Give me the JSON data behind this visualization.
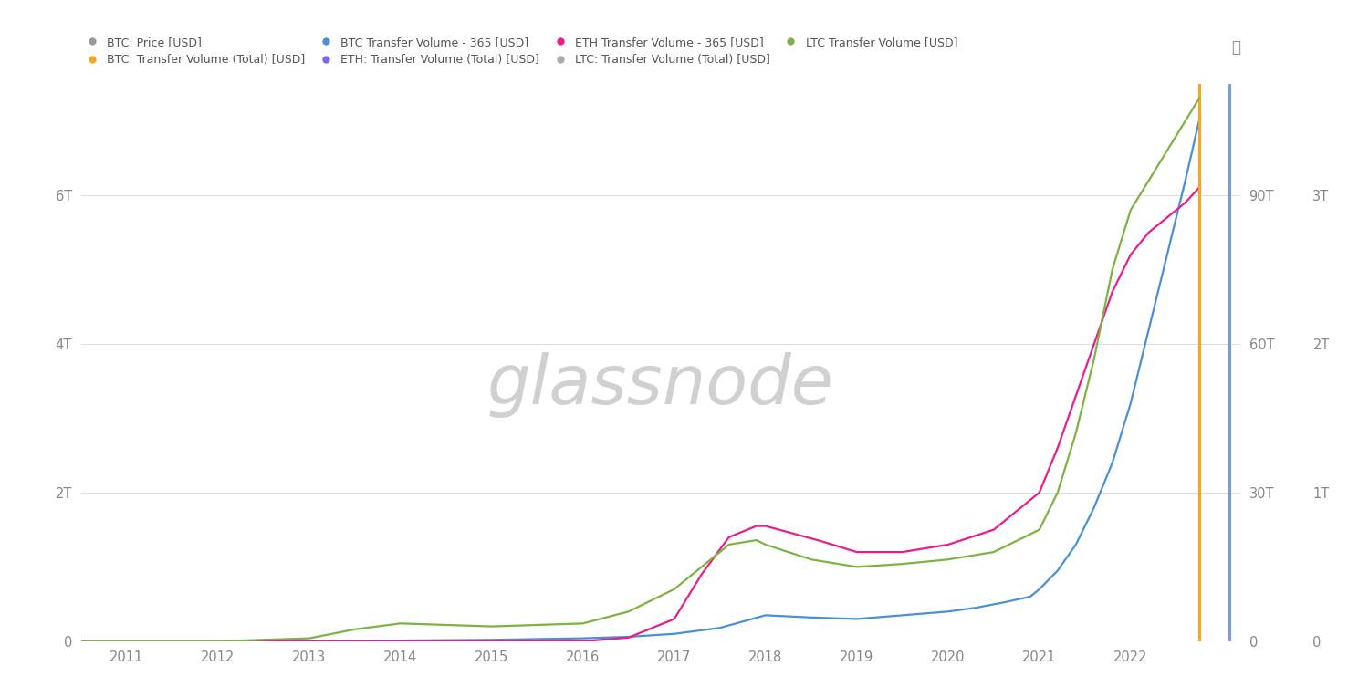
{
  "background_color": "#ffffff",
  "plot_background": "#ffffff",
  "grid_color": "#dddddd",
  "watermark": "glassnode",
  "watermark_color": "#d0d0d0",
  "left_yaxis": {
    "ticks": [
      0,
      2,
      4,
      6
    ],
    "tick_labels": [
      "0",
      "2T",
      "4T",
      "6T"
    ],
    "max": 7.5
  },
  "right_yaxis1": {
    "ticks": [
      0,
      30,
      60,
      90
    ],
    "tick_labels": [
      "0",
      "30T",
      "60T",
      "90T"
    ],
    "max": 112.5
  },
  "right_yaxis2": {
    "ticks": [
      0,
      1,
      2,
      3
    ],
    "tick_labels": [
      "0",
      "1T",
      "2T",
      "3T"
    ],
    "max": 3.75
  },
  "orange_vline_x": 2022.75,
  "blue_vline_x": 2023.08,
  "xmin": 2010.5,
  "xmax": 2023.2,
  "xticks": [
    2011,
    2012,
    2013,
    2014,
    2015,
    2016,
    2017,
    2018,
    2019,
    2020,
    2021,
    2022
  ],
  "colors": {
    "btc_price": "#999999",
    "btc_total": "#f5a623",
    "btc_365": "#4a90d9",
    "eth_total": "#7b68ee",
    "eth_365": "#e91e8c",
    "ltc_total": "#aaaaaa",
    "ltc": "#7cb342"
  },
  "legend_row1": [
    {
      "label": "BTC: Price [USD]",
      "color": "#999999"
    },
    {
      "label": "BTC: Transfer Volume (Total) [USD]",
      "color": "#f5a623"
    },
    {
      "label": "BTC Transfer Volume - 365 [USD]",
      "color": "#4a90d9"
    },
    {
      "label": "ETH: Transfer Volume (Total) [USD]",
      "color": "#7b68ee"
    }
  ],
  "legend_row2": [
    {
      "label": "ETH Transfer Volume - 365 [USD]",
      "color": "#e91e8c"
    },
    {
      "label": "LTC: Transfer Volume (Total) [USD]",
      "color": "#aaaaaa"
    },
    {
      "label": "LTC Transfer Volume [USD]",
      "color": "#7cb342"
    }
  ],
  "btc_x": [
    2010.5,
    2011,
    2012,
    2013,
    2014,
    2015,
    2016,
    2016.5,
    2017,
    2017.5,
    2018,
    2018.5,
    2019,
    2019.5,
    2020,
    2020.3,
    2020.6,
    2020.9,
    2021,
    2021.2,
    2021.4,
    2021.6,
    2021.8,
    2022.0,
    2022.2,
    2022.4,
    2022.6,
    2022.75
  ],
  "btc_y": [
    0,
    0,
    0,
    0,
    0.01,
    0.02,
    0.04,
    0.06,
    0.1,
    0.18,
    0.35,
    0.32,
    0.3,
    0.35,
    0.4,
    0.45,
    0.52,
    0.6,
    0.7,
    0.95,
    1.3,
    1.8,
    2.4,
    3.2,
    4.2,
    5.2,
    6.2,
    7.0
  ],
  "eth_x": [
    2010.5,
    2015.5,
    2016.0,
    2016.5,
    2017.0,
    2017.3,
    2017.6,
    2017.9,
    2018.0,
    2018.3,
    2018.6,
    2019.0,
    2019.5,
    2020.0,
    2020.5,
    2021.0,
    2021.2,
    2021.4,
    2021.6,
    2021.8,
    2022.0,
    2022.2,
    2022.4,
    2022.6,
    2022.75
  ],
  "eth_y": [
    0,
    0,
    0,
    0.05,
    0.3,
    0.9,
    1.4,
    1.55,
    1.55,
    1.45,
    1.35,
    1.2,
    1.2,
    1.3,
    1.5,
    2.0,
    2.6,
    3.3,
    4.0,
    4.7,
    5.2,
    5.5,
    5.7,
    5.9,
    6.1
  ],
  "ltc_x": [
    2010.5,
    2012,
    2013,
    2013.5,
    2014,
    2015,
    2016,
    2016.5,
    2017.0,
    2017.3,
    2017.6,
    2017.9,
    2018.0,
    2018.5,
    2019.0,
    2019.5,
    2020.0,
    2020.5,
    2021.0,
    2021.2,
    2021.4,
    2021.6,
    2021.8,
    2022.0,
    2022.2,
    2022.4,
    2022.6,
    2022.75
  ],
  "ltc_y": [
    0,
    0,
    0.02,
    0.08,
    0.12,
    0.1,
    0.12,
    0.2,
    0.35,
    0.5,
    0.65,
    0.68,
    0.65,
    0.55,
    0.5,
    0.52,
    0.55,
    0.6,
    0.75,
    1.0,
    1.4,
    1.9,
    2.5,
    2.9,
    3.1,
    3.3,
    3.5,
    3.65
  ]
}
